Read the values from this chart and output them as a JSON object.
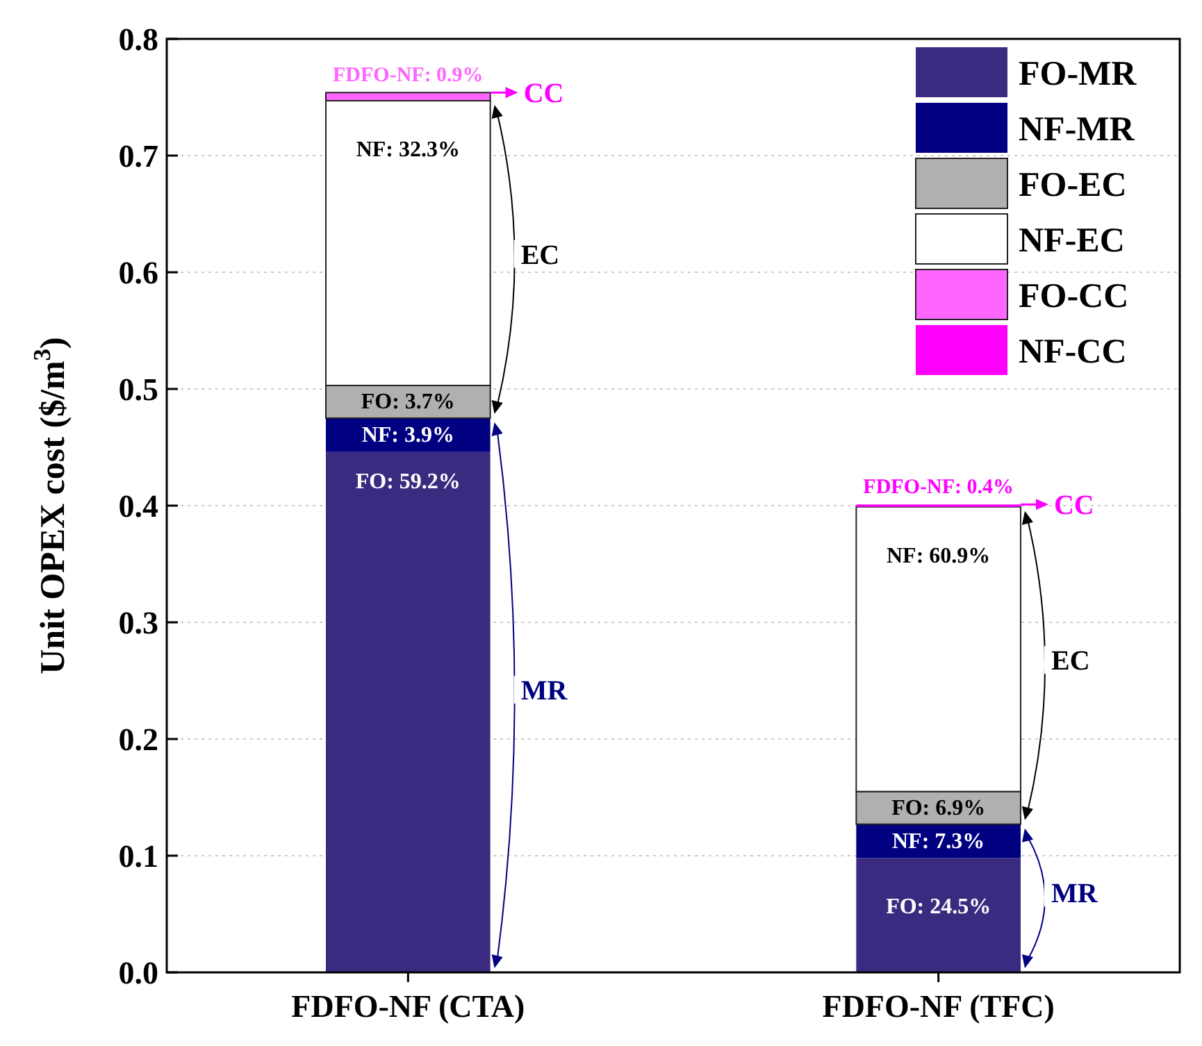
{
  "chart_data": {
    "type": "bar",
    "stacked": true,
    "categories": [
      "FDFO-NF (CTA)",
      "FDFO-NF (TFC)"
    ],
    "ylabel": "Unit OPEX cost ($/m$^{3}$)",
    "ylim": [
      0,
      0.8
    ],
    "yticks": [
      {
        "value": 0,
        "label": "0.0"
      },
      0.1,
      0.2,
      0.3,
      0.4,
      0.5,
      0.6,
      0.7,
      0.8
    ],
    "grid": "y",
    "legend": "top right",
    "series": [
      {
        "name": "FO-MR",
        "color": "#3a2a80",
        "values": [
          0.446,
          0.098
        ]
      },
      {
        "name": "NF-MR",
        "color": "#000080",
        "values": [
          0.029,
          0.029
        ]
      },
      {
        "name": "FO-EC",
        "color": "#b0b0b0",
        "values": [
          0.028,
          0.028
        ]
      },
      {
        "name": "NF-EC",
        "color": "#ffffff",
        "values": [
          0.244,
          0.244
        ]
      },
      {
        "name": "FO-CC",
        "color": "#ff66ff",
        "values": [
          0.007,
          0
        ]
      },
      {
        "name": "NF-CC",
        "color": "#ff00ff",
        "values": [
          0,
          0.002
        ]
      }
    ],
    "annotations": [
      {
        "text": "FO: 59.2%",
        "x": "FDFO-NF (CTA)",
        "y": 0.446
      },
      {
        "text": "NF: 3.9%",
        "x": "FDFO-NF (CTA)",
        "y": 0.475
      },
      {
        "text": "FO: 3.7%",
        "x": "FDFO-NF (CTA)",
        "y": 0.503
      },
      {
        "text": "NF: 32.3%",
        "x": "FDFO-NF (CTA)",
        "y": 0.747
      },
      {
        "text": "FDFO-NF: 0.9%",
        "x": "FDFO-NF (CTA)",
        "y": 0.754
      },
      {
        "text": "FO: 24.5%",
        "x": "FDFO-NF (TFC)",
        "y": 0.098
      },
      {
        "text": "NF: 7.3%",
        "x": "FDFO-NF (TFC)",
        "y": 0.127
      },
      {
        "text": "FO: 6.9%",
        "x": "FDFO-NF (TFC)",
        "y": 0.155
      },
      {
        "text": "NF: 60.9%",
        "x": "FDFO-NF (TFC)",
        "y": 0.399
      },
      {
        "text": "FDFO-NF: 0.4%",
        "x": "FDFO-NF (TFC)",
        "y": 0.401
      },
      "CC",
      "EC",
      "MR",
      "CC",
      "EC",
      "MR"
    ]
  }
}
